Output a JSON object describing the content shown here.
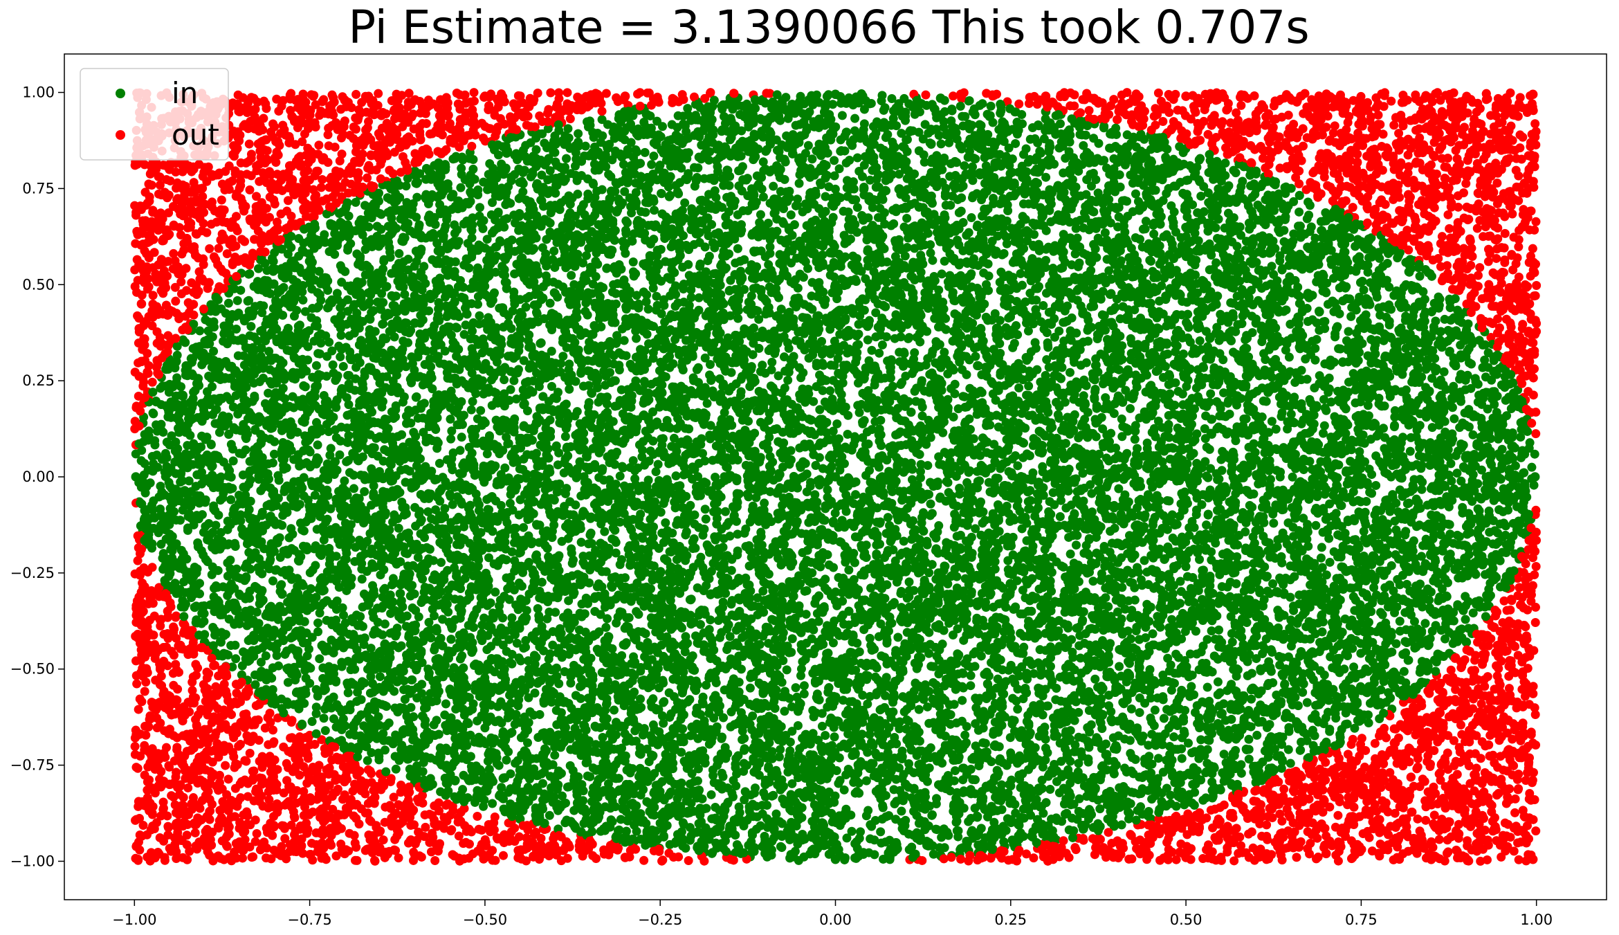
{
  "chart_data": {
    "type": "scatter",
    "title": "Pi Estimate = 3.1390066 This took 0.707s",
    "xlabel": "",
    "ylabel": "",
    "xlim": [
      -1.1,
      1.1
    ],
    "ylim": [
      -1.1,
      1.1
    ],
    "x_ticks": [
      -1.0,
      -0.75,
      -0.5,
      -0.25,
      0.0,
      0.25,
      0.5,
      0.75,
      1.0
    ],
    "x_tick_labels": [
      "−1.00",
      "−0.75",
      "−0.50",
      "−0.25",
      "0.00",
      "0.25",
      "0.50",
      "0.75",
      "1.00"
    ],
    "y_ticks": [
      1.0,
      0.75,
      0.5,
      0.25,
      0.0,
      -0.25,
      -0.5,
      -0.75,
      -1.0
    ],
    "y_tick_labels": [
      "1.00",
      "0.75",
      "0.50",
      "0.25",
      "0.00",
      "−0.25",
      "−0.50",
      "−0.75",
      "−1.00"
    ],
    "grid": false,
    "legend_position": "top-left",
    "series": [
      {
        "name": "in",
        "color": "#008000",
        "rule": "x^2 + y^2 <= 1",
        "points": [
          [
            0.0,
            0.995
          ],
          [
            0.15,
            0.985
          ],
          [
            -0.15,
            0.985
          ],
          [
            0.3,
            0.95
          ],
          [
            -0.3,
            0.95
          ],
          [
            0.45,
            0.89
          ],
          [
            -0.45,
            0.89
          ],
          [
            0.6,
            0.795
          ],
          [
            -0.6,
            0.795
          ],
          [
            0.72,
            0.69
          ],
          [
            -0.72,
            0.69
          ],
          [
            0.82,
            0.565
          ],
          [
            -0.82,
            0.565
          ],
          [
            0.9,
            0.43
          ],
          [
            -0.9,
            0.43
          ],
          [
            0.955,
            0.28
          ],
          [
            -0.955,
            0.28
          ],
          [
            0.988,
            0.14
          ],
          [
            -0.988,
            0.14
          ],
          [
            0.998,
            0.0
          ],
          [
            -0.998,
            0.0
          ],
          [
            0.988,
            -0.14
          ],
          [
            -0.988,
            -0.14
          ],
          [
            0.955,
            -0.28
          ],
          [
            -0.955,
            -0.28
          ],
          [
            0.9,
            -0.43
          ],
          [
            -0.9,
            -0.43
          ],
          [
            0.82,
            -0.565
          ],
          [
            -0.82,
            -0.565
          ],
          [
            0.72,
            -0.69
          ],
          [
            -0.72,
            -0.69
          ],
          [
            0.6,
            -0.795
          ],
          [
            -0.6,
            -0.795
          ],
          [
            0.45,
            -0.89
          ],
          [
            -0.45,
            -0.89
          ],
          [
            0.3,
            -0.95
          ],
          [
            -0.3,
            -0.95
          ],
          [
            0.15,
            -0.985
          ],
          [
            -0.15,
            -0.985
          ],
          [
            0.0,
            -0.995
          ],
          [
            0.0,
            0.0
          ],
          [
            0.25,
            0.25
          ],
          [
            -0.25,
            0.25
          ],
          [
            0.25,
            -0.25
          ],
          [
            -0.25,
            -0.25
          ],
          [
            0.5,
            0.0
          ],
          [
            -0.5,
            0.0
          ],
          [
            0.0,
            0.5
          ],
          [
            0.0,
            -0.5
          ],
          [
            0.6,
            0.4
          ],
          [
            -0.6,
            0.4
          ],
          [
            0.6,
            -0.4
          ],
          [
            -0.6,
            -0.4
          ],
          [
            0.4,
            0.7
          ],
          [
            -0.4,
            0.7
          ],
          [
            0.4,
            -0.7
          ],
          [
            -0.4,
            -0.7
          ],
          [
            0.75,
            0.1
          ],
          [
            -0.75,
            0.1
          ],
          [
            0.75,
            -0.1
          ],
          [
            -0.75,
            -0.1
          ],
          [
            0.1,
            0.8
          ],
          [
            -0.1,
            0.8
          ],
          [
            0.1,
            -0.8
          ],
          [
            -0.1,
            -0.8
          ]
        ]
      },
      {
        "name": "out",
        "color": "#ff0000",
        "rule": "x^2 + y^2 > 1",
        "points": [
          [
            0.995,
            0.995
          ],
          [
            -0.995,
            0.995
          ],
          [
            0.995,
            -0.995
          ],
          [
            -0.995,
            -0.995
          ],
          [
            0.85,
            0.95
          ],
          [
            -0.85,
            0.95
          ],
          [
            0.85,
            -0.95
          ],
          [
            -0.85,
            -0.95
          ],
          [
            0.95,
            0.8
          ],
          [
            -0.95,
            0.8
          ],
          [
            0.95,
            -0.8
          ],
          [
            -0.95,
            -0.8
          ],
          [
            0.7,
            0.98
          ],
          [
            -0.7,
            0.98
          ],
          [
            0.7,
            -0.98
          ],
          [
            -0.7,
            -0.98
          ],
          [
            0.98,
            0.65
          ],
          [
            -0.98,
            0.65
          ],
          [
            0.98,
            -0.65
          ],
          [
            -0.98,
            -0.65
          ],
          [
            0.5,
            0.99
          ],
          [
            -0.5,
            0.99
          ],
          [
            0.5,
            -0.99
          ],
          [
            -0.5,
            -0.99
          ],
          [
            0.99,
            0.45
          ],
          [
            -0.99,
            0.45
          ],
          [
            0.99,
            -0.45
          ],
          [
            -0.99,
            -0.45
          ],
          [
            0.3,
            0.99
          ],
          [
            -0.3,
            0.99
          ],
          [
            0.3,
            -0.99
          ],
          [
            -0.3,
            -0.99
          ],
          [
            0.99,
            0.3
          ],
          [
            -0.99,
            0.3
          ],
          [
            0.99,
            -0.3
          ],
          [
            -0.99,
            -0.3
          ]
        ]
      }
    ]
  },
  "legend": {
    "in_label": "in",
    "out_label": "out"
  }
}
